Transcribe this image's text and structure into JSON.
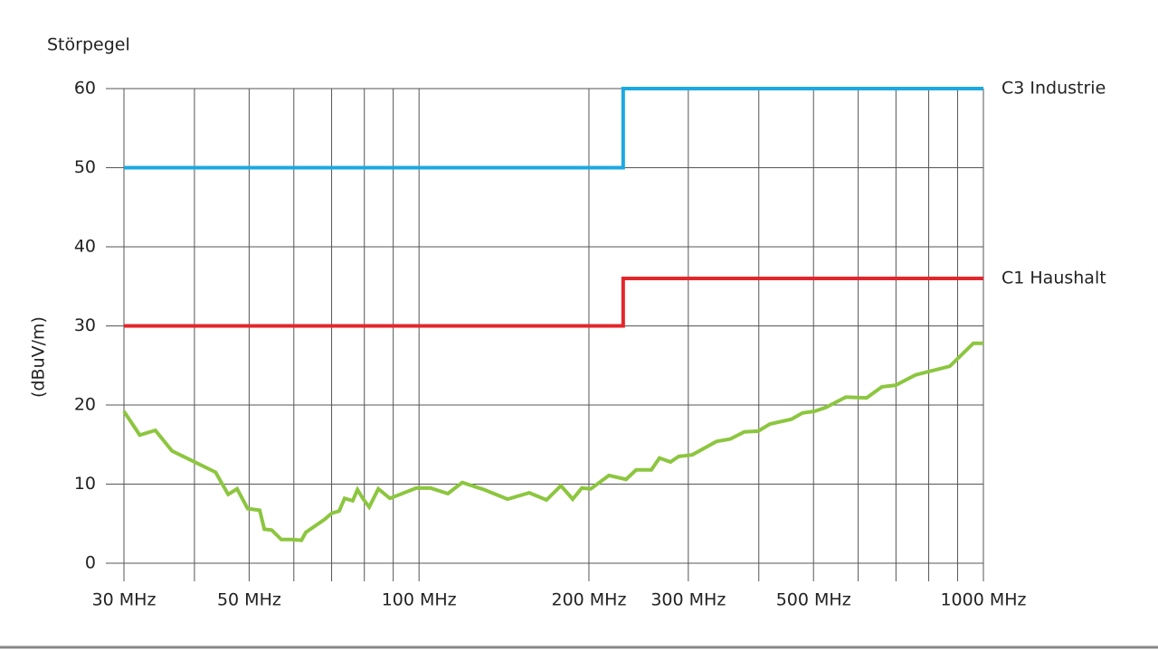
{
  "chart_data": {
    "type": "line",
    "title": "Störpegel",
    "y_label": "(dBuV/m)",
    "xscale": "log",
    "xlim": [
      30,
      1000
    ],
    "ylim": [
      0,
      60
    ],
    "xticks": [
      {
        "value": 30,
        "label": "30 MHz"
      },
      {
        "value": 50,
        "label": "50 MHz"
      },
      {
        "value": 100,
        "label": "100 MHz"
      },
      {
        "value": 200,
        "label": "200 MHz"
      },
      {
        "value": 300,
        "label": "300 MHz"
      },
      {
        "value": 500,
        "label": "500 MHz"
      },
      {
        "value": 1000,
        "label": "1000 MHz"
      }
    ],
    "xminor": [
      40,
      60,
      70,
      80,
      90,
      400,
      600,
      700,
      800,
      900
    ],
    "yticks": [
      0,
      10,
      20,
      30,
      40,
      50,
      60
    ],
    "grid": true,
    "series": [
      {
        "name": "C3 Industrie",
        "color": "#1ba9e1",
        "x": [
          30,
          230,
          230,
          1000
        ],
        "values": [
          50,
          50,
          60,
          60
        ]
      },
      {
        "name": "C1 Haushalt",
        "color": "#e3262b",
        "x": [
          30,
          230,
          230,
          1000
        ],
        "values": [
          30,
          30,
          36,
          36
        ]
      },
      {
        "color": "#8cc63f",
        "x": [
          30,
          32,
          34.1,
          36.5,
          43.6,
          45.9,
          47.6,
          49.7,
          52.2,
          53.2,
          54.8,
          57,
          59.4,
          61.9,
          63,
          65.1,
          67.9,
          70,
          72.2,
          73.8,
          76.3,
          77.8,
          79.5,
          81.6,
          84.7,
          88.8,
          98.9,
          104.8,
          112.5,
          119.3,
          130.4,
          143.5,
          156.8,
          168.2,
          178.4,
          187.2,
          194.3,
          201.6,
          217,
          232.7,
          242.5,
          258,
          266.7,
          279,
          288.4,
          304.8,
          336.6,
          356,
          377,
          399,
          418.6,
          457,
          478,
          501.6,
          526,
          570.6,
          621,
          661,
          699,
          758,
          872,
          960,
          1000
        ],
        "values": [
          19.2,
          16.2,
          16.8,
          14.2,
          11.5,
          8.7,
          9.4,
          6.9,
          6.7,
          4.3,
          4.2,
          3.0,
          3.0,
          2.9,
          3.9,
          4.6,
          5.5,
          6.3,
          6.6,
          8.2,
          7.9,
          9.3,
          8.2,
          7.1,
          9.4,
          8.2,
          9.5,
          9.5,
          8.8,
          10.2,
          9.3,
          8.1,
          8.9,
          8.0,
          9.8,
          8.1,
          9.5,
          9.4,
          11.1,
          10.6,
          11.8,
          11.8,
          13.3,
          12.8,
          13.5,
          13.7,
          15.4,
          15.7,
          16.6,
          16.7,
          17.6,
          18.2,
          19.0,
          19.2,
          19.7,
          21.0,
          20.9,
          22.3,
          22.5,
          23.8,
          24.9,
          27.8,
          27.8
        ]
      }
    ]
  }
}
